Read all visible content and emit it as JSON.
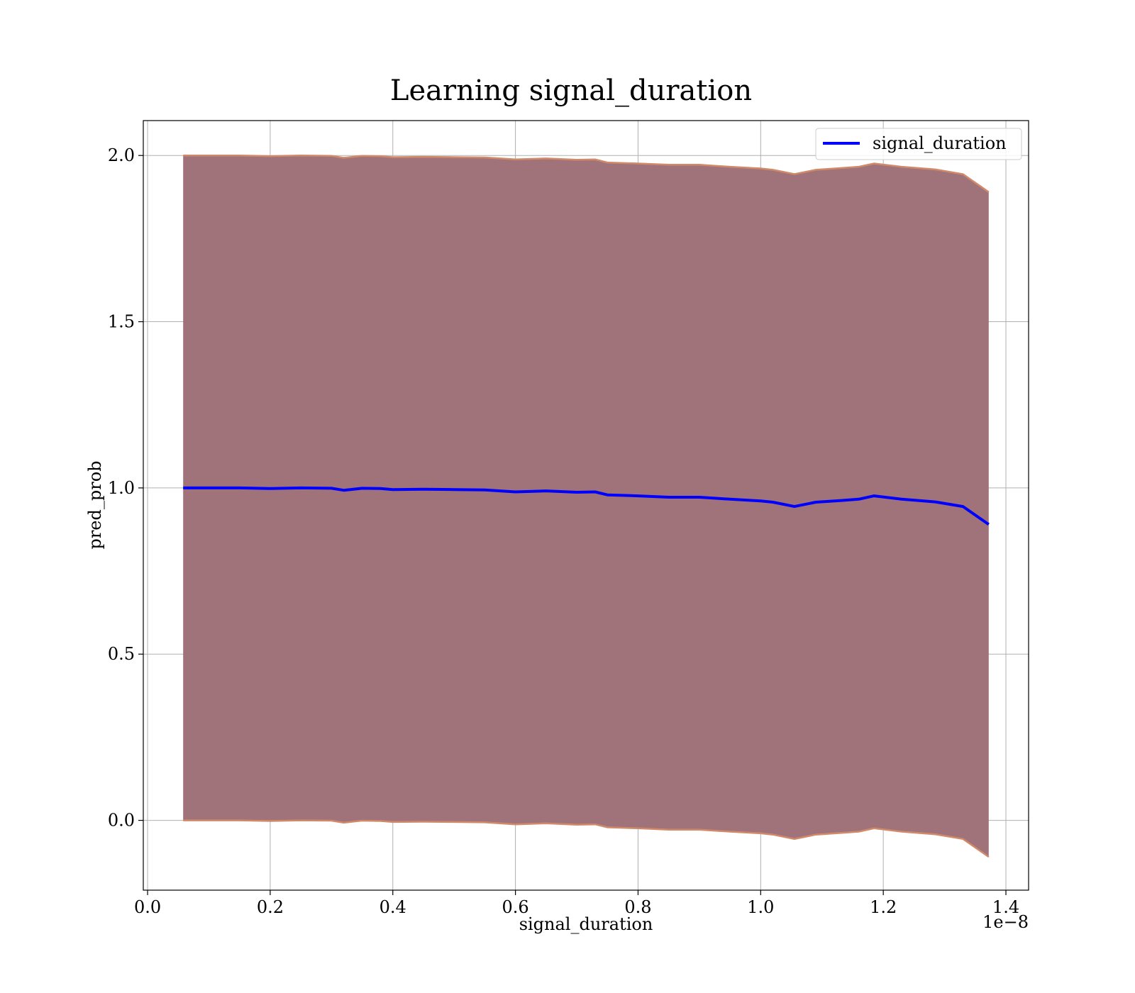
{
  "chart_data": {
    "type": "line",
    "title": "Learning signal_duration",
    "xlabel": "signal_duration",
    "ylabel": "pred_prob",
    "x_offset_label": "1e−8",
    "xlim": [
      -0.007,
      1.437
    ],
    "ylim": [
      -0.21,
      2.105
    ],
    "x_ticks": [
      0.0,
      0.2,
      0.4,
      0.6,
      0.8,
      1.0,
      1.2,
      1.4
    ],
    "x_tick_labels": [
      "0.0",
      "0.2",
      "0.4",
      "0.6",
      "0.8",
      "1.0",
      "1.2",
      "1.4"
    ],
    "y_ticks": [
      0.0,
      0.5,
      1.0,
      1.5,
      2.0
    ],
    "y_tick_labels": [
      "0.0",
      "0.5",
      "1.0",
      "1.5",
      "2.0"
    ],
    "grid": true,
    "legend": {
      "position": "top-right",
      "entries": [
        "signal_duration"
      ]
    },
    "colors": {
      "line": "#0000ff",
      "band_fill": "#a0727a",
      "band_edge": "#d08a6a"
    },
    "series": [
      {
        "name": "signal_duration",
        "x": [
          0.058,
          0.1,
          0.15,
          0.2,
          0.25,
          0.3,
          0.32,
          0.35,
          0.38,
          0.4,
          0.45,
          0.5,
          0.55,
          0.6,
          0.65,
          0.7,
          0.73,
          0.75,
          0.8,
          0.85,
          0.9,
          0.95,
          1.0,
          1.02,
          1.055,
          1.09,
          1.13,
          1.16,
          1.185,
          1.23,
          1.285,
          1.33,
          1.372
        ],
        "y": [
          1.0,
          1.0,
          1.0,
          0.998,
          1.0,
          0.999,
          0.993,
          0.999,
          0.998,
          0.995,
          0.996,
          0.995,
          0.994,
          0.988,
          0.991,
          0.987,
          0.988,
          0.979,
          0.976,
          0.972,
          0.972,
          0.966,
          0.961,
          0.957,
          0.944,
          0.957,
          0.962,
          0.966,
          0.976,
          0.966,
          0.958,
          0.944,
          0.89
        ],
        "band_upper": [
          2.0,
          2.0,
          2.0,
          1.998,
          2.0,
          1.999,
          1.993,
          1.999,
          1.998,
          1.995,
          1.996,
          1.995,
          1.994,
          1.988,
          1.991,
          1.987,
          1.988,
          1.979,
          1.976,
          1.972,
          1.972,
          1.966,
          1.961,
          1.957,
          1.944,
          1.957,
          1.962,
          1.966,
          1.976,
          1.966,
          1.958,
          1.944,
          1.89
        ],
        "band_lower": [
          0.0,
          0.0,
          0.0,
          -0.002,
          0.0,
          -0.001,
          -0.007,
          -0.001,
          -0.002,
          -0.005,
          -0.004,
          -0.005,
          -0.006,
          -0.012,
          -0.009,
          -0.013,
          -0.012,
          -0.021,
          -0.024,
          -0.028,
          -0.028,
          -0.034,
          -0.039,
          -0.043,
          -0.056,
          -0.043,
          -0.038,
          -0.034,
          -0.024,
          -0.034,
          -0.042,
          -0.056,
          -0.11
        ]
      }
    ]
  }
}
